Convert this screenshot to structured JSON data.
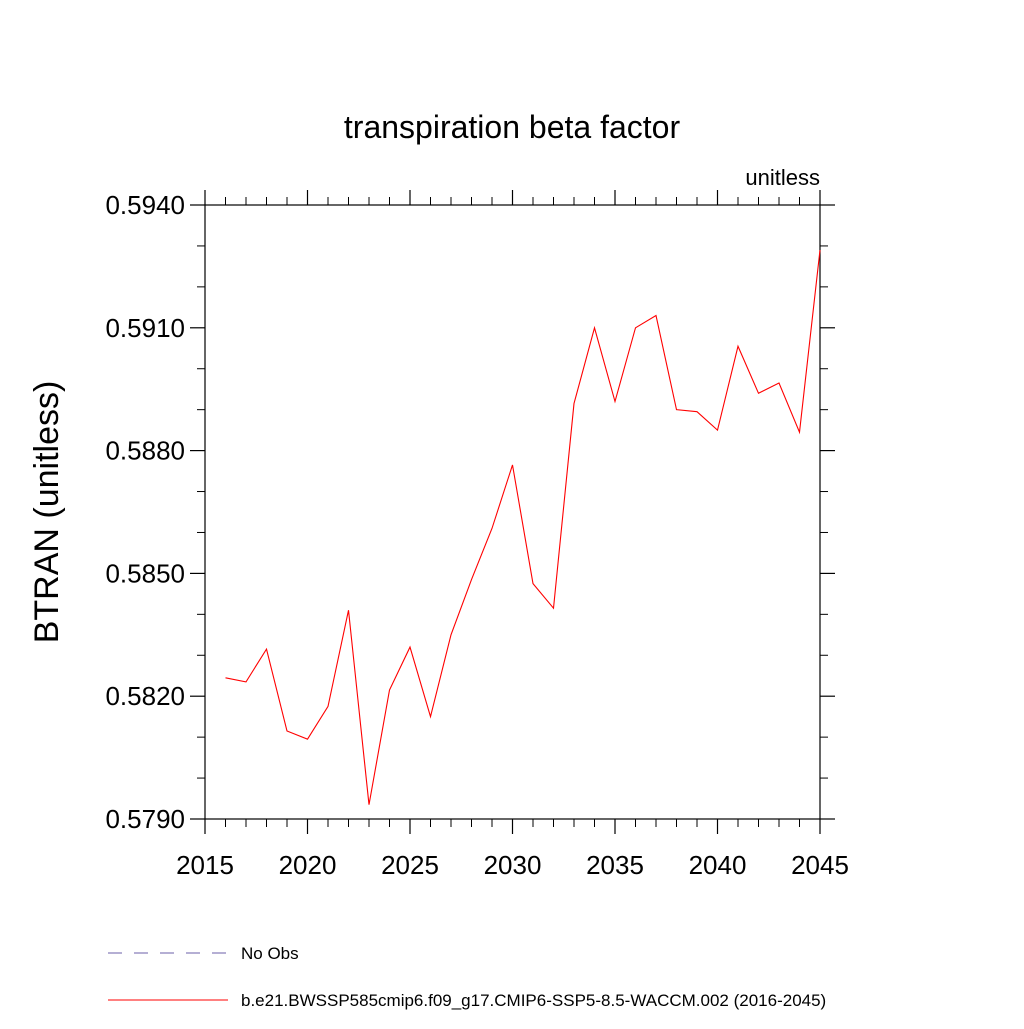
{
  "chart_data": {
    "type": "line",
    "title": "transpiration beta factor",
    "units_label": "unitless",
    "ylabel": "BTRAN  (unitless)",
    "xlabel": "",
    "xlim": [
      2015,
      2045
    ],
    "ylim": [
      0.579,
      0.594
    ],
    "x_ticks": [
      2015,
      2020,
      2025,
      2030,
      2035,
      2040,
      2045
    ],
    "x_tick_labels": [
      "2015",
      "2020",
      "2025",
      "2030",
      "2035",
      "2040",
      "2045"
    ],
    "y_ticks": [
      0.579,
      0.582,
      0.585,
      0.588,
      0.591,
      0.594
    ],
    "y_tick_labels": [
      "0.5790",
      "0.5820",
      "0.5850",
      "0.5880",
      "0.5910",
      "0.5940"
    ],
    "x_minor_step": 1,
    "y_minor_step": 0.001,
    "grid": false,
    "legend_position": "bottom",
    "series": [
      {
        "name": "No Obs",
        "color": "#6b5fa8",
        "dash": "dashed",
        "x": [],
        "values": []
      },
      {
        "name": "b.e21.BWSSP585cmip6.f09_g17.CMIP6-SSP5-8.5-WACCM.002 (2016-2045)",
        "color": "#ff0000",
        "dash": "solid",
        "x": [
          2016,
          2017,
          2018,
          2019,
          2020,
          2021,
          2022,
          2023,
          2024,
          2025,
          2026,
          2027,
          2028,
          2029,
          2030,
          2031,
          2032,
          2033,
          2034,
          2035,
          2036,
          2037,
          2038,
          2039,
          2040,
          2041,
          2042,
          2043,
          2044,
          2045
        ],
        "values": [
          0.58245,
          0.58235,
          0.58315,
          0.58115,
          0.58095,
          0.58175,
          0.5841,
          0.57935,
          0.58215,
          0.5832,
          0.5815,
          0.5835,
          0.58485,
          0.5861,
          0.58765,
          0.58475,
          0.58415,
          0.58915,
          0.591,
          0.5892,
          0.591,
          0.5913,
          0.589,
          0.58895,
          0.5885,
          0.59055,
          0.5894,
          0.58965,
          0.58845,
          0.5929
        ]
      }
    ]
  }
}
